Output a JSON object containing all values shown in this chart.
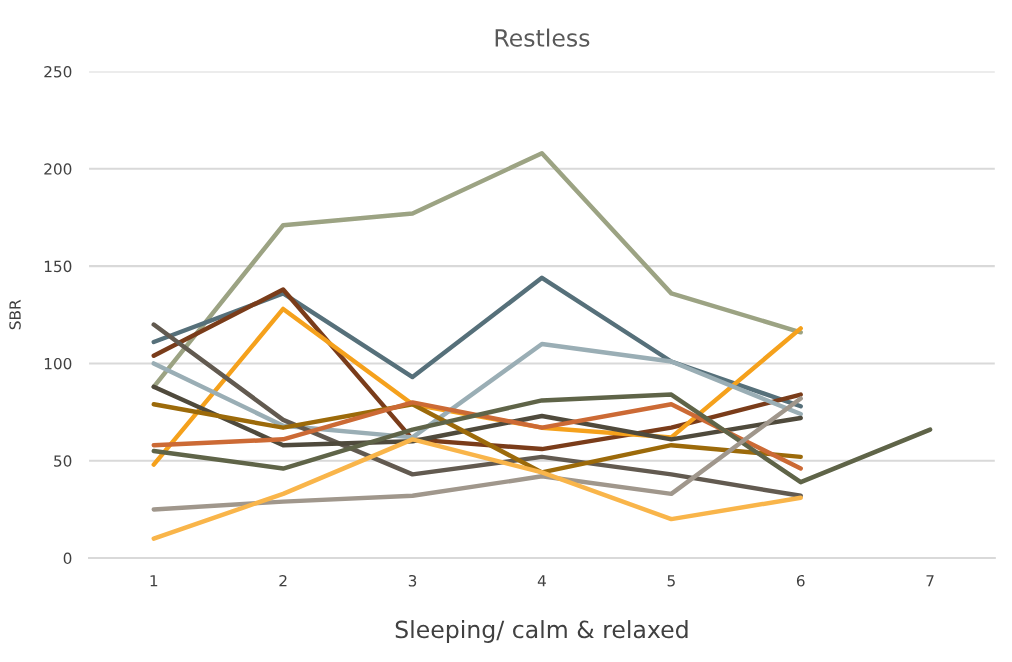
{
  "chart_data": {
    "type": "line",
    "title": "Restless",
    "xlabel": "Sleeping/ calm & relaxed",
    "ylabel": "SBR",
    "x": [
      1,
      2,
      3,
      4,
      5,
      6,
      7
    ],
    "xlim": [
      0.5,
      7.5
    ],
    "xticks": [
      1,
      2,
      3,
      4,
      5,
      6,
      7
    ],
    "ylim": [
      0,
      250
    ],
    "yticks": [
      0,
      50,
      100,
      150,
      200,
      250
    ],
    "grid": "y",
    "marker": "none",
    "line_style": "solid",
    "series": [
      {
        "color": "#9ca383",
        "values": [
          88,
          171,
          177,
          208,
          136,
          116,
          null
        ]
      },
      {
        "color": "#56707a",
        "values": [
          111,
          136,
          93,
          144,
          101,
          78,
          null
        ]
      },
      {
        "color": "#7a3c1a",
        "values": [
          104,
          138,
          61,
          56,
          67,
          84,
          null
        ]
      },
      {
        "color": "#f5a11c",
        "values": [
          48,
          128,
          79,
          67,
          62,
          118,
          null
        ]
      },
      {
        "color": "#9aaeb5",
        "values": [
          100,
          68,
          62,
          110,
          101,
          74,
          null
        ]
      },
      {
        "color": "#625a50",
        "values": [
          120,
          71,
          43,
          52,
          43,
          32,
          null
        ]
      },
      {
        "color": "#4f4a3c",
        "values": [
          88,
          58,
          60,
          73,
          61,
          72,
          null
        ]
      },
      {
        "color": "#9c6a0a",
        "values": [
          79,
          67,
          79,
          44,
          58,
          52,
          null
        ]
      },
      {
        "color": "#cc6a35",
        "values": [
          58,
          61,
          80,
          67,
          79,
          46,
          null
        ]
      },
      {
        "color": "#5f6448",
        "values": [
          55,
          46,
          66,
          81,
          84,
          39,
          66
        ]
      },
      {
        "color": "#a0978c",
        "values": [
          25,
          29,
          32,
          42,
          33,
          82,
          null
        ]
      },
      {
        "color": "#f9b54a",
        "values": [
          10,
          33,
          61,
          44,
          20,
          31,
          null
        ]
      }
    ]
  }
}
